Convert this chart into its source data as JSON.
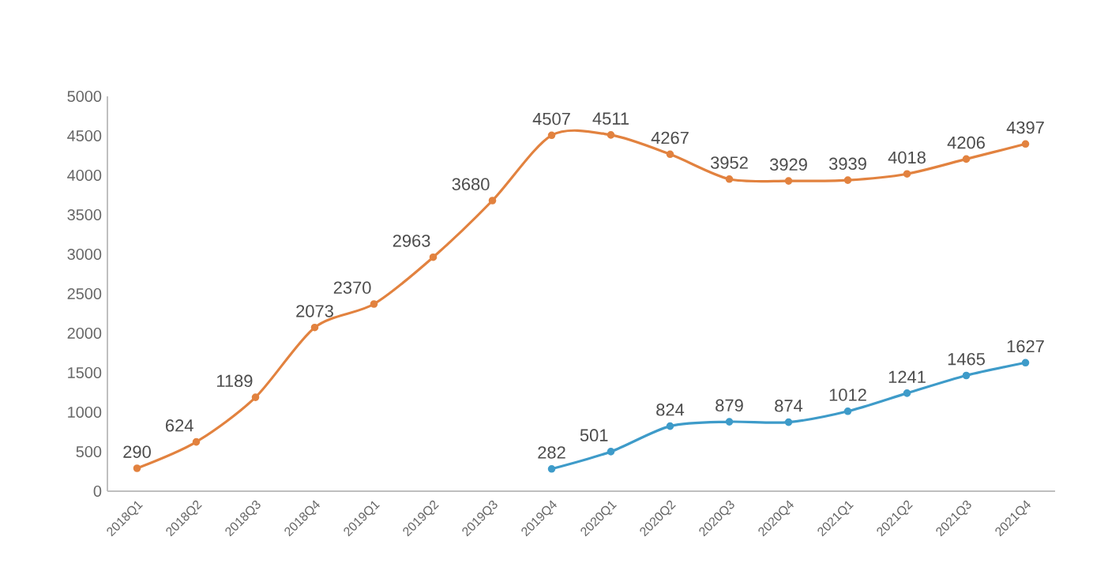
{
  "chart_data": {
    "type": "line",
    "categories": [
      "2018Q1",
      "2018Q2",
      "2018Q3",
      "2018Q4",
      "2019Q1",
      "2019Q2",
      "2019Q3",
      "2019Q4",
      "2020Q1",
      "2020Q2",
      "2020Q3",
      "2020Q4",
      "2021Q1",
      "2021Q2",
      "2021Q3",
      "2021Q4"
    ],
    "series": [
      {
        "color": "#e2823f",
        "values": [
          290,
          624,
          1189,
          2073,
          2370,
          2963,
          3680,
          4507,
          4511,
          4267,
          3952,
          3929,
          3939,
          4018,
          4206,
          4397
        ]
      },
      {
        "color": "#3e9bc9",
        "values": [
          null,
          null,
          null,
          null,
          null,
          null,
          null,
          282,
          501,
          824,
          879,
          874,
          1012,
          1241,
          1465,
          1627
        ]
      }
    ],
    "ylim": [
      0,
      5000
    ],
    "yticks": [
      0,
      500,
      1000,
      1500,
      2000,
      2500,
      3000,
      3500,
      4000,
      4500,
      5000
    ],
    "data_labels": true,
    "marker": "circle",
    "grid": false,
    "legend": false
  }
}
